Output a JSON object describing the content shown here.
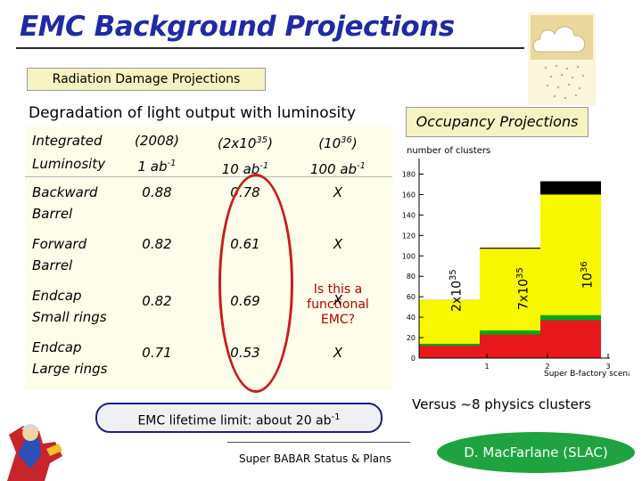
{
  "title": "EMC Background Projections",
  "subtitle": "Radiation Damage Projections",
  "degradation_heading": "Degradation of light output with luminosity",
  "table": {
    "header": {
      "col0": [
        "Integrated",
        "Luminosity"
      ],
      "col1": [
        "(2008)",
        "1 ab-1"
      ],
      "col2": [
        "(2x1035)",
        "10 ab-1"
      ],
      "col3": [
        "(1036)",
        "100 ab-1"
      ]
    },
    "rows": [
      {
        "name": [
          "Backward",
          "Barrel"
        ],
        "v1": "0.88",
        "v2": "0.78",
        "v3": "X"
      },
      {
        "name": [
          "Forward",
          "Barrel"
        ],
        "v1": "0.82",
        "v2": "0.61",
        "v3": "X"
      },
      {
        "name": [
          "Endcap",
          "Small rings"
        ],
        "v1": "0.82",
        "v2": "0.69",
        "v3": "X"
      },
      {
        "name": [
          "Endcap",
          "Large rings"
        ],
        "v1": "0.71",
        "v2": "0.53",
        "v3": "X"
      }
    ],
    "note": [
      "Is this a",
      "functional",
      "EMC?"
    ]
  },
  "lifetime_limit": "EMC lifetime limit: about 20 ab-1",
  "occupancy": {
    "heading": "Occupancy Projections",
    "versus": "Versus ~8 physics clusters"
  },
  "footer": "Super BABAR Status & Plans",
  "author": "D. MacFarlane (SLAC)",
  "chart_data": {
    "type": "bar",
    "ylabel": "number of clusters",
    "xlabel": "Super B-factory scenario",
    "x_ticks": [
      "1",
      "2",
      "3"
    ],
    "y_ticks": [
      "0",
      "20",
      "40",
      "60",
      "80",
      "100",
      "120",
      "140",
      "160",
      "180"
    ],
    "ylim": [
      0,
      190
    ],
    "categories": [
      "2x10^35",
      "7x10^35",
      "10^36"
    ],
    "series": [
      {
        "color": "#e8171b",
        "values": [
          12,
          23,
          37
        ]
      },
      {
        "color": "#05a816",
        "values": [
          14,
          27,
          42
        ]
      },
      {
        "color": "#f7f800",
        "values": [
          57,
          107,
          160
        ]
      },
      {
        "color": "#000000",
        "values": [
          57,
          108,
          173
        ]
      }
    ],
    "labels": [
      "2x1035",
      "7x1035",
      "1036"
    ]
  },
  "colors": {
    "title": "#1f2aa6",
    "box_fill": "#f6f3c3",
    "oval": "#c81e1e",
    "author_fill": "#1fa341"
  }
}
